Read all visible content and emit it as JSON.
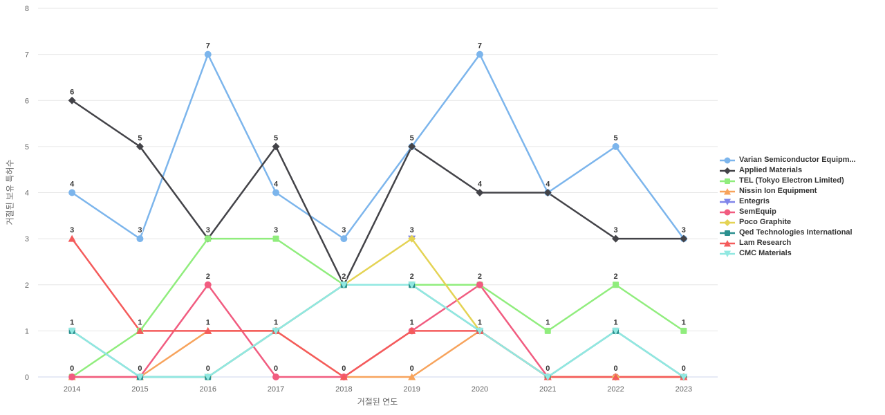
{
  "chart_data": {
    "type": "line",
    "title": "",
    "xlabel": "거절된 연도",
    "ylabel": "거절된 보유 특허수",
    "x_categories": [
      "2014",
      "2015",
      "2016",
      "2017",
      "2018",
      "2019",
      "2020",
      "2021",
      "2022",
      "2023"
    ],
    "ylim": [
      0,
      8
    ],
    "yticks": [
      0,
      1,
      2,
      3,
      4,
      5,
      6,
      7,
      8
    ],
    "grid": true,
    "legend_position": "right",
    "colors": {
      "grid_line": "#e6e6e6",
      "axis_line": "#ccd6eb",
      "tick_label": "#666666",
      "axis_title": "#666666",
      "data_label": "#333333",
      "legend_text": "#333333"
    },
    "series": [
      {
        "name": "Varian Semiconductor Equipm...",
        "color": "#7cb5ec",
        "marker": "circle",
        "values": [
          4,
          3,
          7,
          4,
          3,
          5,
          7,
          4,
          5,
          3
        ]
      },
      {
        "name": "Applied Materials",
        "color": "#434348",
        "marker": "diamond",
        "values": [
          6,
          5,
          3,
          5,
          2,
          5,
          4,
          4,
          3,
          3
        ]
      },
      {
        "name": "TEL (Tokyo Electron Limited)",
        "color": "#90ed7d",
        "marker": "square",
        "values": [
          0,
          1,
          3,
          3,
          2,
          2,
          2,
          1,
          2,
          1
        ]
      },
      {
        "name": "Nissin Ion Equipment",
        "color": "#f7a35c",
        "marker": "triangle",
        "values": [
          0,
          0,
          1,
          1,
          0,
          0,
          1,
          0,
          0,
          0
        ]
      },
      {
        "name": "Entegris",
        "color": "#8085e9",
        "marker": "triangle-down",
        "values": [
          null,
          null,
          null,
          null,
          null,
          3,
          null,
          null,
          null,
          null
        ]
      },
      {
        "name": "SemEquip",
        "color": "#f15c80",
        "marker": "circle",
        "values": [
          0,
          0,
          2,
          0,
          0,
          1,
          2,
          0,
          0,
          0
        ]
      },
      {
        "name": "Poco Graphite",
        "color": "#e4d354",
        "marker": "diamond",
        "values": [
          null,
          null,
          0,
          1,
          2,
          3,
          1,
          0,
          0,
          0
        ]
      },
      {
        "name": "Qed Technologies International",
        "color": "#2b908f",
        "marker": "square",
        "values": [
          1,
          0,
          0,
          1,
          2,
          2,
          1,
          0,
          1,
          0
        ]
      },
      {
        "name": "Lam Research",
        "color": "#f45b5b",
        "marker": "triangle",
        "values": [
          3,
          1,
          1,
          1,
          0,
          1,
          1,
          0,
          0,
          0
        ]
      },
      {
        "name": "CMC Materials",
        "color": "#91e8e1",
        "marker": "triangle-down",
        "values": [
          1,
          0,
          0,
          1,
          2,
          2,
          1,
          0,
          1,
          0
        ]
      }
    ]
  }
}
